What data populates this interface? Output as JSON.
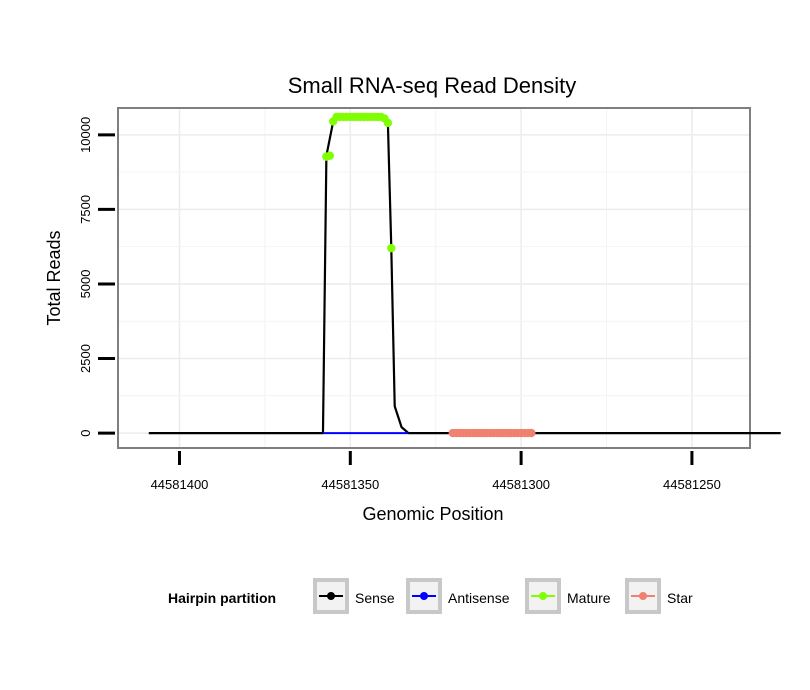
{
  "chart_data": {
    "type": "line",
    "title": "Small RNA-seq Read Density",
    "xlabel": "Genomic Position",
    "ylabel": "Total Reads",
    "x_reversed": true,
    "xlim": [
      44581418,
      44581233
    ],
    "ylim": [
      -500,
      10900
    ],
    "x_ticks": [
      44581400,
      44581350,
      44581300,
      44581250
    ],
    "x_tick_labels": [
      "44581400",
      "44581350",
      "44581300",
      "44581250"
    ],
    "y_ticks": [
      0,
      2500,
      5000,
      7500,
      10000
    ],
    "y_tick_labels": [
      "0",
      "2500",
      "5000",
      "7500",
      "10000"
    ],
    "grid": true,
    "legend": {
      "title": "Hairpin partition",
      "position": "bottom",
      "entries": [
        {
          "label": "Sense",
          "color": "#000000"
        },
        {
          "label": "Antisense",
          "color": "#0000ff"
        },
        {
          "label": "Mature",
          "color": "#7fff00"
        },
        {
          "label": "Star",
          "color": "#f08070"
        }
      ]
    },
    "series": [
      {
        "name": "Sense",
        "color": "#000000",
        "points": [
          [
            44581409,
            0
          ],
          [
            44581358,
            0
          ],
          [
            44581357,
            9300
          ],
          [
            44581355,
            10450
          ],
          [
            44581354,
            10600
          ],
          [
            44581340,
            10600
          ],
          [
            44581339,
            10400
          ],
          [
            44581338,
            6200
          ],
          [
            44581337,
            900
          ],
          [
            44581335,
            200
          ],
          [
            44581333,
            0
          ],
          [
            44581224,
            0
          ]
        ]
      },
      {
        "name": "Antisense",
        "color": "#0000ff",
        "points": [
          [
            44581358,
            0
          ],
          [
            44581333,
            0
          ]
        ]
      },
      {
        "name": "Mature",
        "color": "#7fff00",
        "points": [
          [
            44581357,
            9270
          ],
          [
            44581356,
            9300
          ],
          [
            44581355,
            10450
          ],
          [
            44581354,
            10600
          ],
          [
            44581353,
            10600
          ],
          [
            44581352,
            10600
          ],
          [
            44581351,
            10600
          ],
          [
            44581350,
            10600
          ],
          [
            44581349,
            10600
          ],
          [
            44581348,
            10600
          ],
          [
            44581347,
            10600
          ],
          [
            44581346,
            10600
          ],
          [
            44581345,
            10600
          ],
          [
            44581344,
            10600
          ],
          [
            44581343,
            10600
          ],
          [
            44581342,
            10600
          ],
          [
            44581341,
            10600
          ],
          [
            44581340,
            10550
          ],
          [
            44581339,
            10400
          ],
          [
            44581338,
            6200
          ]
        ]
      },
      {
        "name": "Star",
        "color": "#f08070",
        "points": [
          [
            44581320,
            0
          ],
          [
            44581319,
            0
          ],
          [
            44581318,
            0
          ],
          [
            44581317,
            0
          ],
          [
            44581316,
            0
          ],
          [
            44581315,
            0
          ],
          [
            44581314,
            0
          ],
          [
            44581313,
            0
          ],
          [
            44581312,
            0
          ],
          [
            44581311,
            0
          ],
          [
            44581310,
            0
          ],
          [
            44581309,
            0
          ],
          [
            44581308,
            0
          ],
          [
            44581307,
            0
          ],
          [
            44581306,
            0
          ],
          [
            44581305,
            0
          ],
          [
            44581304,
            0
          ],
          [
            44581303,
            0
          ],
          [
            44581302,
            0
          ],
          [
            44581301,
            0
          ],
          [
            44581300,
            0
          ],
          [
            44581299,
            0
          ],
          [
            44581298,
            0
          ],
          [
            44581297,
            0
          ]
        ]
      }
    ]
  }
}
